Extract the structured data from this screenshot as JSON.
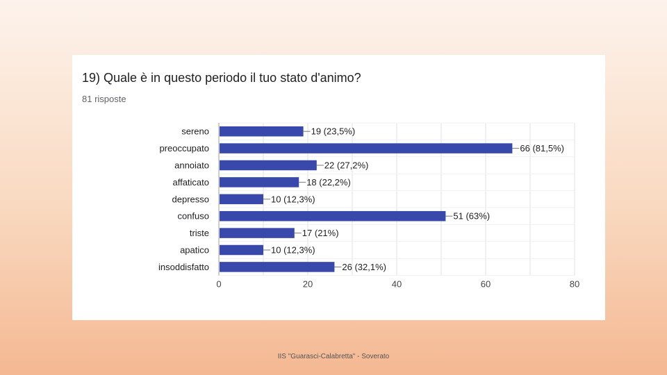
{
  "slide": {
    "footer": "IIS \"Guarasci-Calabretta\" - Soverato"
  },
  "card": {
    "question": "19) Quale è in questo periodo il tuo stato d'animo?",
    "responses": "81 risposte"
  },
  "colors": {
    "bar": "#3949ab",
    "grid": "#e0e0e0",
    "axis": "#9e9e9e",
    "text": "#202124"
  },
  "chart_data": {
    "type": "bar",
    "orientation": "horizontal",
    "categories": [
      "sereno",
      "preoccupato",
      "annoiato",
      "affaticato",
      "depresso",
      "confuso",
      "triste",
      "apatico",
      "insoddisfatto"
    ],
    "values": [
      19,
      66,
      22,
      18,
      10,
      51,
      17,
      10,
      26
    ],
    "data_labels": [
      "19 (23,5%)",
      "66 (81,5%)",
      "22 (27,2%)",
      "18 (22,2%)",
      "10 (12,3%)",
      "51 (63%)",
      "17 (21%)",
      "10 (12,3%)",
      "26 (32,1%)"
    ],
    "xlim": [
      0,
      80
    ],
    "xticks": [
      0,
      20,
      40,
      60,
      80
    ],
    "grid": true
  }
}
